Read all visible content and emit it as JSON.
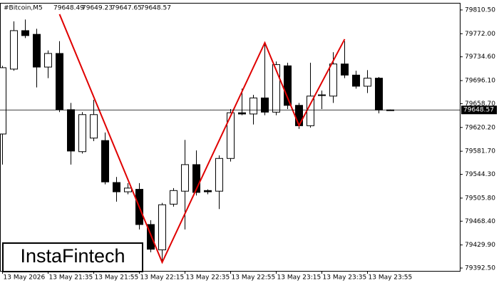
{
  "chart_data": {
    "type": "candlestick",
    "header": {
      "symbol": "#Bitcoin,M5",
      "ohlc": [
        79648.49,
        79649.23,
        79647.65,
        79648.57
      ]
    },
    "categories": [
      "13 May 2026",
      null,
      null,
      null,
      "13 May 21:35",
      null,
      null,
      null,
      "13 May 21:55",
      null,
      null,
      null,
      "13 May 22:15",
      null,
      null,
      null,
      "13 May 22:35",
      null,
      null,
      null,
      "13 May 22:55",
      null,
      null,
      null,
      "13 May 23:15",
      null,
      null,
      null,
      "13 May 23:35",
      null,
      null,
      null,
      "13 May 23:55",
      null,
      null
    ],
    "open": [
      79609.6,
      79714.7,
      79777.0,
      79771.0,
      79718.0,
      79740.0,
      79649.0,
      79581.0,
      79603.0,
      79599.0,
      79531.0,
      79516.0,
      79520.0,
      79463.0,
      79422.0,
      79496.0,
      79517.0,
      79560.0,
      79518.0,
      79517.0,
      79570.0,
      79644.0,
      79642.0,
      79668.0,
      79645.0,
      79720.0,
      79656.0,
      79623.0,
      79672.0,
      79671.0,
      79723.0,
      79705.0,
      79687.0,
      79700.0,
      79648.49
    ],
    "high": [
      79720.0,
      79792.0,
      79795.0,
      79780.0,
      79745.0,
      79760.0,
      79660.0,
      79645.0,
      79665.0,
      79612.0,
      79540.0,
      79530.0,
      79530.0,
      79470.0,
      79498.0,
      79522.0,
      79600.0,
      79583.0,
      79520.0,
      79575.0,
      79650.0,
      79683.0,
      79673.0,
      79757.0,
      79727.0,
      79725.0,
      79660.0,
      79725.0,
      79680.0,
      79742.0,
      79760.0,
      79712.0,
      79713.0,
      79702.0,
      79649.23
    ],
    "low": [
      79560.0,
      79712.0,
      79765.0,
      79685.0,
      79700.0,
      79645.0,
      79560.0,
      79578.0,
      79598.0,
      79528.0,
      79500.0,
      79512.0,
      79455.0,
      79418.0,
      79402.0,
      79492.0,
      79455.0,
      79510.0,
      79512.0,
      79488.0,
      79565.0,
      79640.0,
      79625.0,
      79640.0,
      79640.0,
      79650.0,
      79618.0,
      79620.0,
      79650.0,
      79660.0,
      79700.0,
      79683.0,
      79676.0,
      79643.0,
      79647.65
    ],
    "close": [
      79717.0,
      79777.0,
      79769.0,
      79718.0,
      79740.0,
      79649.0,
      79582.0,
      79641.0,
      79641.0,
      79532.0,
      79516.0,
      79522.0,
      79463.0,
      79423.0,
      79495.0,
      79518.0,
      79560.0,
      79515.0,
      79516.0,
      79570.0,
      79644.0,
      79642.0,
      79668.0,
      79645.0,
      79722.0,
      79656.0,
      79623.0,
      79671.0,
      79673.0,
      79723.0,
      79705.0,
      79687.0,
      79700.0,
      79648.5,
      79648.57
    ],
    "pattern_line": {
      "color": "#e00000",
      "x": [
        5,
        14,
        23,
        26,
        30
      ],
      "values": [
        79803.6,
        79401.7,
        79757.4,
        79623.4,
        79763.2
      ]
    },
    "last_price": 79648.57,
    "ylim": [
      79387.9,
      79822.0
    ],
    "yticks": [
      {
        "value": 79810.5,
        "label": "79810.50"
      },
      {
        "value": 79772,
        "label": "79772.00"
      },
      {
        "value": 79734.6,
        "label": "79734.60"
      },
      {
        "value": 79696.1,
        "label": "79696.10"
      },
      {
        "value": 79658.7,
        "label": "79658.70"
      },
      {
        "value": 79620.2,
        "label": "79620.20"
      },
      {
        "value": 79581.7,
        "label": "79581.70"
      },
      {
        "value": 79544.3,
        "label": "79544.30"
      },
      {
        "value": 79505.8,
        "label": "79505.80"
      },
      {
        "value": 79468.4,
        "label": "79468.40"
      },
      {
        "value": 79429.9,
        "label": "79429.90"
      },
      {
        "value": 79392.5,
        "label": "79392.50"
      }
    ],
    "watermark": "InstaFintech"
  }
}
